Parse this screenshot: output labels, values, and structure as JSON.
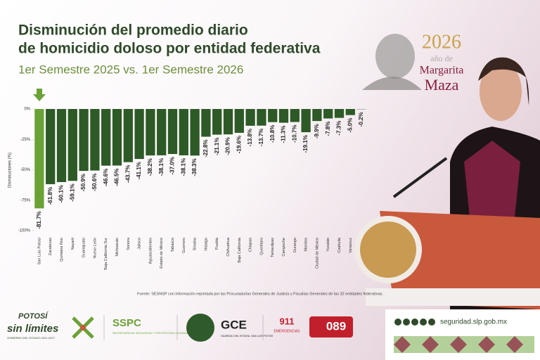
{
  "chart_data": {
    "type": "bar",
    "title_lines": [
      "Disminución del promedio diario",
      "de homicidio doloso por entidad federativa"
    ],
    "subtitle": "1er Semestre 2025 vs. 1er Semestre 2026",
    "y_label": "Disminuciones (%)",
    "categories": [
      "San Luis Potosí",
      "Zacatecas",
      "Quintana Roo",
      "Nayarit",
      "Guanajuato",
      "Nuevo León",
      "Baja California Sur",
      "Michoacán",
      "Sonora",
      "Jalisco",
      "Aguascalientes",
      "Estado de México",
      "Tabasco",
      "Guerrero",
      "Sinaloa",
      "Hidalgo",
      "Puebla",
      "Chihuahua",
      "Baja California",
      "Chiapas",
      "Querétaro",
      "Tamaulipas",
      "Campeche",
      "Durango",
      "Morelos",
      "Ciudad de México",
      "Yucatán",
      "Coahuila",
      "Veracruz",
      null
    ],
    "values": [
      -81.7,
      -61.8,
      -60.1,
      -59.1,
      -50.9,
      -50.6,
      -46.6,
      -46.5,
      -43.7,
      -41.1,
      -38.2,
      -38.1,
      -37.0,
      -38.1,
      -38.3,
      -22.8,
      -21.1,
      -20.9,
      -19.6,
      -13.8,
      -13.7,
      -10.8,
      -11.3,
      -10.7,
      -19.1,
      -9.9,
      -7.8,
      -7.3,
      -5.0,
      -0.2
    ],
    "value_labels": [
      "-81.7%",
      "-61.8%",
      "-60.1%",
      "-59.1%",
      "-50.9%",
      "-50.6%",
      "-46.6%",
      "-46.5%",
      "-43.7%",
      "-41.1%",
      "-38.2%",
      "-38.1%",
      "-37.0%",
      "-38.1%",
      "-38.3%",
      "-22.8%",
      "-21.1%",
      "-20.9%",
      "-19.6%",
      "-13.8%",
      "-13.7%",
      "-10.8%",
      "-11.3%",
      "-10.7%",
      "-19.1%",
      "-9.9%",
      "-7.8%",
      "-7.3%",
      "-5.0%",
      "-0.2%"
    ],
    "color": "#2d5a26",
    "highlight_color": "#6aa236",
    "ylim": [
      -100,
      0
    ],
    "yticks": [
      {
        "value": 0,
        "label": "0%"
      },
      {
        "value": -25,
        "label": "-25%"
      },
      {
        "value": -50,
        "label": "-50%"
      },
      {
        "value": -75,
        "label": "-75%"
      },
      {
        "value": -100,
        "label": "-100%"
      }
    ],
    "source": "Fuente: SESNSP con información reportada por las Procuradurías Generales de Justicia y Fiscalías Generales de las 32 entidades federativas."
  },
  "badge": {
    "year": "2026",
    "line1": "año de",
    "line2": "Margarita",
    "line3": "Maza"
  },
  "footer": {
    "potosi": "POTOSÍ",
    "sinlimites": "sin límites",
    "gobierno": "GOBIERNO DEL ESTADO 2021-2027",
    "sspc": "SSPC",
    "sspc_full": "SECRETARÍA DE SEGURIDAD Y PROTECCIÓN CIUDADANA",
    "gce": "GCE",
    "gce_full": "GUARDIA CIVIL ESTATAL SAN LUIS POTOSÍ",
    "n911": "911",
    "emergencias": "EMERGENCIAS",
    "n089": "089",
    "url": "seguridad.slp.gob.mx"
  }
}
